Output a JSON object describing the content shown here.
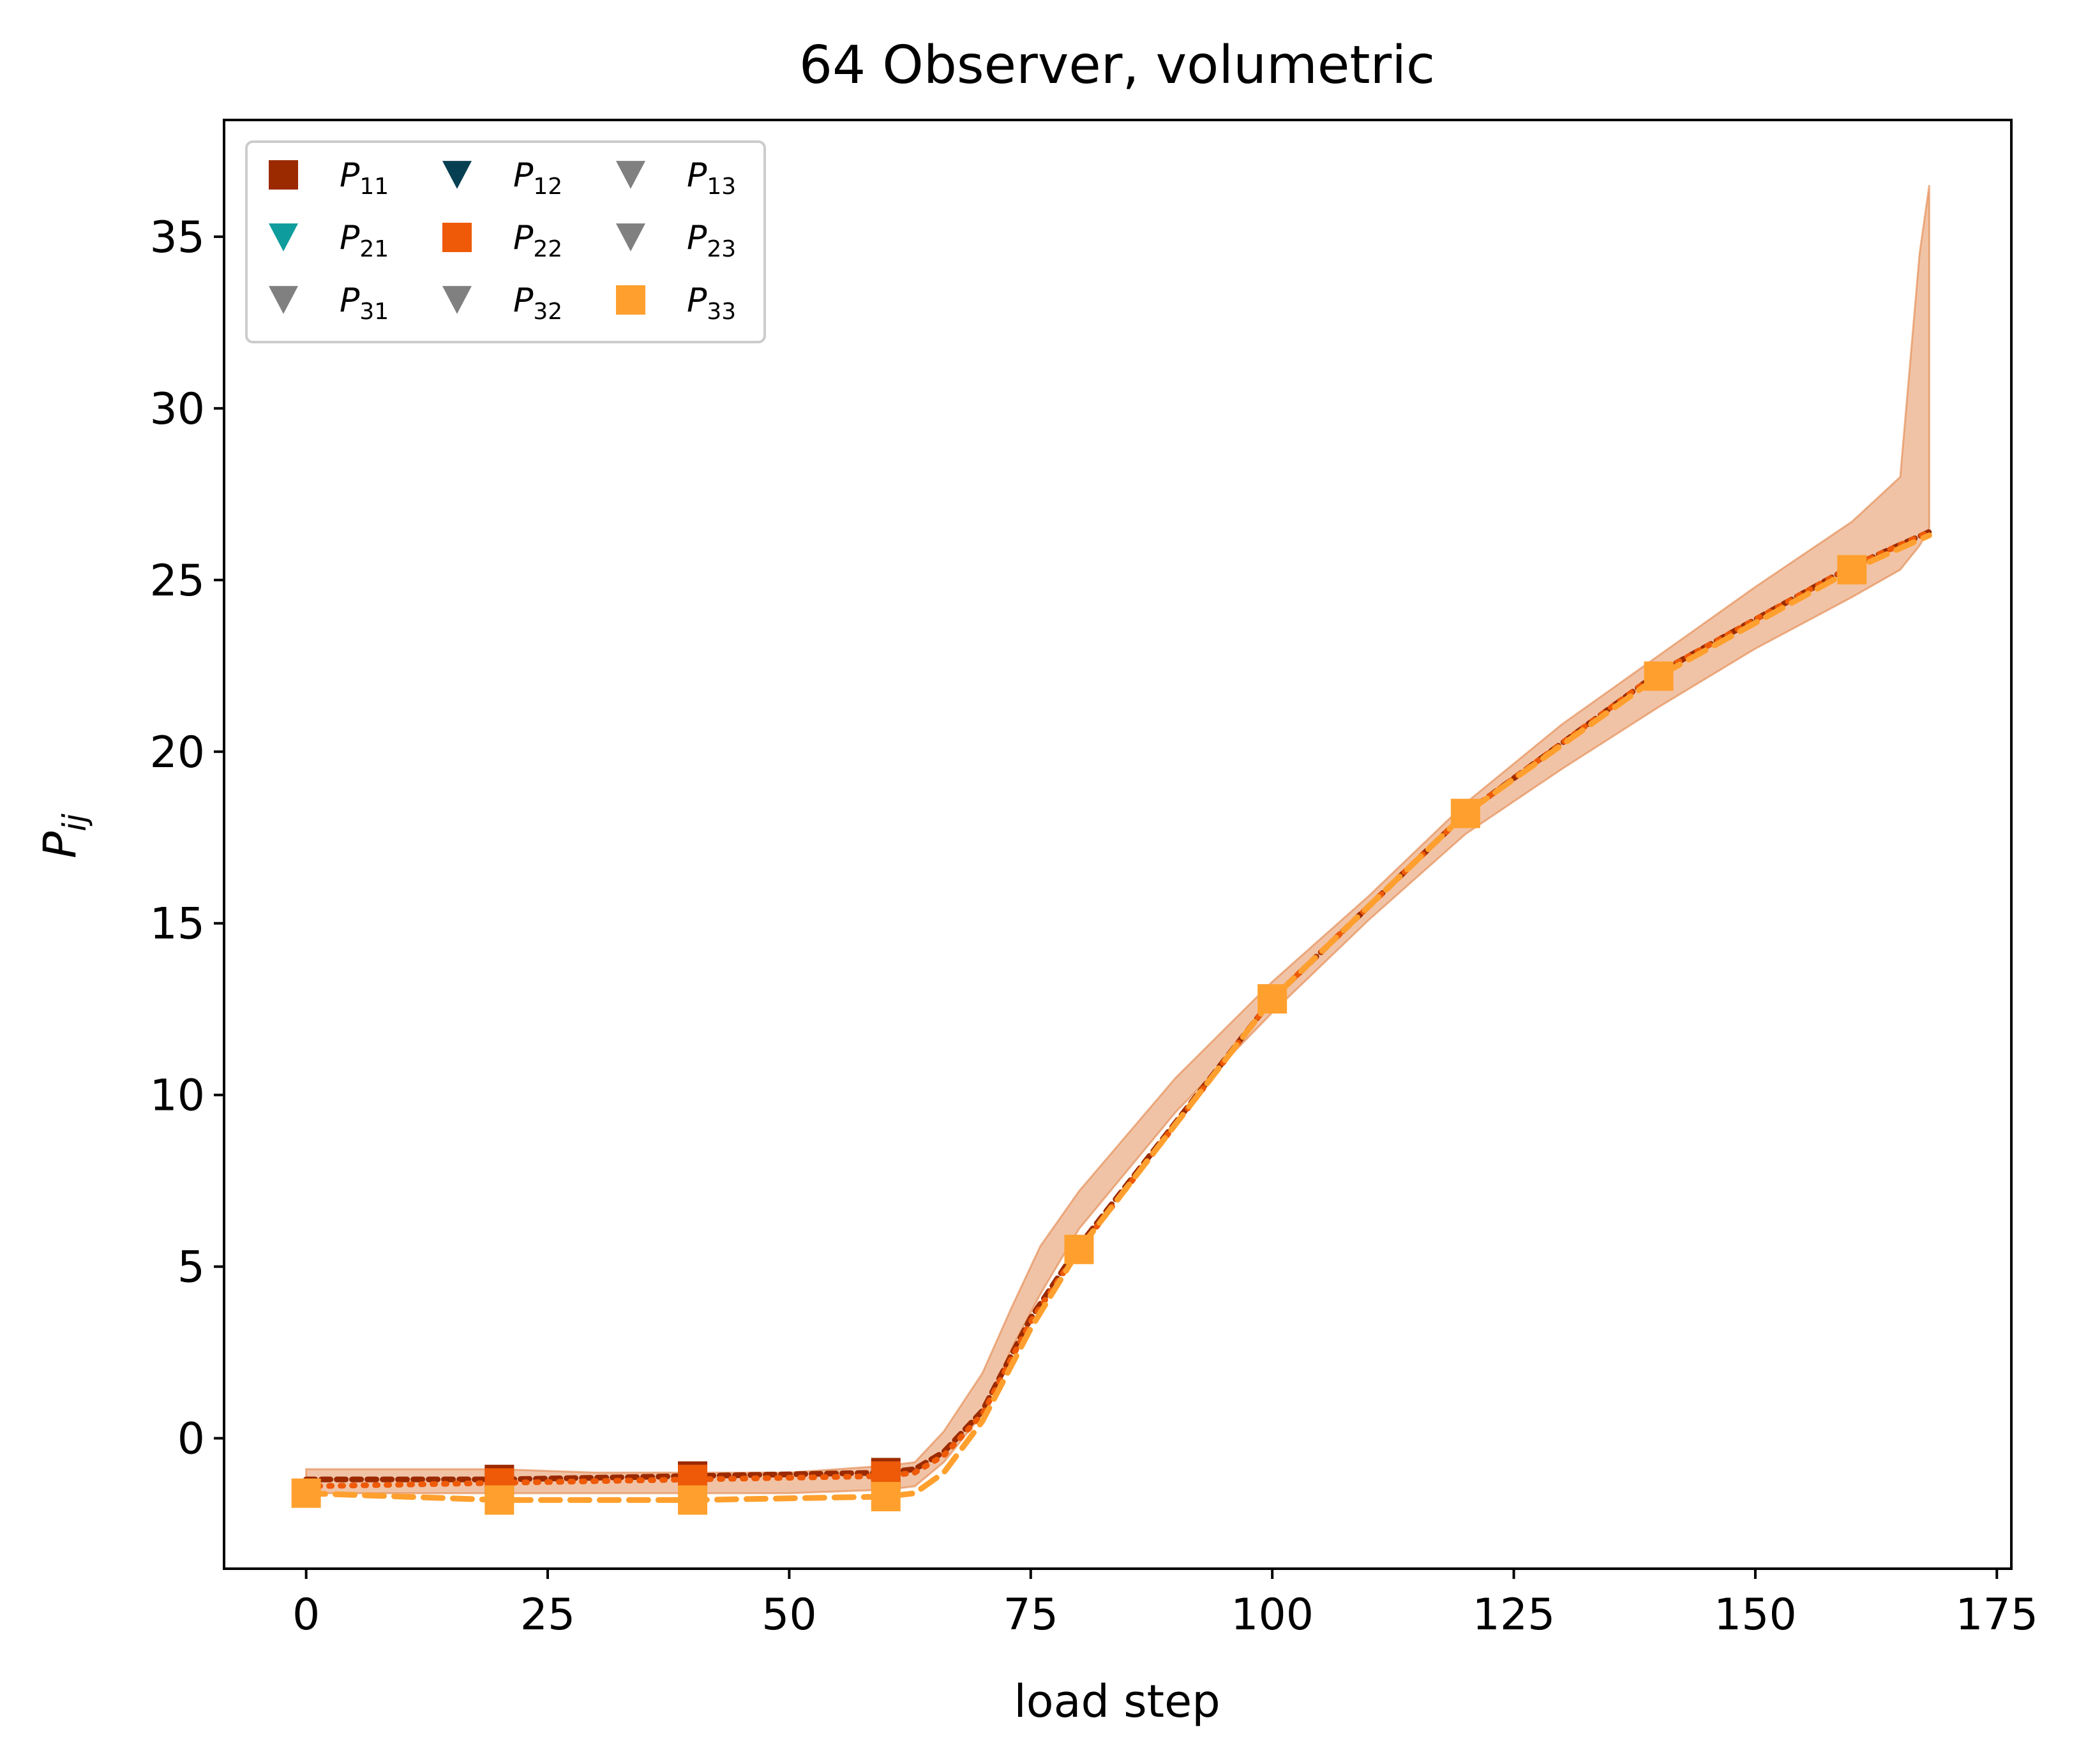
{
  "chart_data": {
    "type": "line",
    "title": "64 Observer, volumetric",
    "xlabel": "load step",
    "ylabel_main": "P",
    "ylabel_sub": "ij",
    "xlim": [
      -8.5,
      176.5
    ],
    "ylim": [
      -3.8,
      38.4
    ],
    "xticks": [
      0,
      25,
      50,
      75,
      100,
      125,
      150,
      175
    ],
    "yticks": [
      0,
      5,
      10,
      15,
      20,
      25,
      30,
      35
    ],
    "grid": false,
    "legend_position": "upper-left",
    "legend_columns": 3,
    "band": {
      "color": "#e07b3a",
      "opacity": 0.45,
      "x": [
        0,
        10,
        20,
        30,
        40,
        50,
        60,
        63,
        66,
        70,
        73,
        76,
        80,
        90,
        100,
        110,
        120,
        130,
        140,
        150,
        160,
        165,
        167,
        168
      ],
      "upper": [
        -0.9,
        -0.9,
        -0.9,
        -1.0,
        -1.0,
        -1.0,
        -0.8,
        -0.7,
        0.2,
        1.9,
        3.8,
        5.6,
        7.2,
        10.5,
        13.3,
        15.8,
        18.5,
        20.8,
        22.8,
        24.8,
        26.7,
        28.0,
        34.5,
        36.5
      ],
      "lower": [
        -1.6,
        -1.6,
        -1.6,
        -1.6,
        -1.6,
        -1.6,
        -1.5,
        -1.4,
        -0.7,
        0.7,
        2.6,
        4.2,
        6.1,
        9.5,
        12.4,
        15.1,
        17.6,
        19.5,
        21.3,
        23.0,
        24.5,
        25.3,
        26.0,
        26.5
      ]
    },
    "series": [
      {
        "name": "P_11",
        "label_main": "P",
        "label_sub": "11",
        "color": "#9b2a00",
        "marker": "square",
        "dash": "14,10",
        "x": [
          0,
          20,
          40,
          60,
          63,
          66,
          70,
          75,
          80,
          100,
          120,
          140,
          160,
          168
        ],
        "y": [
          -1.2,
          -1.2,
          -1.1,
          -1.0,
          -0.9,
          -0.4,
          0.8,
          3.5,
          5.6,
          12.8,
          18.2,
          22.3,
          25.4,
          26.4
        ],
        "marker_x": [
          20,
          40,
          60
        ],
        "marker_y": [
          -1.2,
          -1.1,
          -1.0
        ]
      },
      {
        "name": "P_21",
        "label_main": "P",
        "label_sub": "21",
        "color": "#0e9c9c",
        "marker": "triangle-down",
        "x": [],
        "y": []
      },
      {
        "name": "P_31",
        "label_main": "P",
        "label_sub": "31",
        "color": "#808080",
        "marker": "triangle-down",
        "x": [],
        "y": []
      },
      {
        "name": "P_12",
        "label_main": "P",
        "label_sub": "12",
        "color": "#073f52",
        "marker": "triangle-down",
        "x": [],
        "y": []
      },
      {
        "name": "P_22",
        "label_main": "P",
        "label_sub": "22",
        "color": "#ee5a08",
        "marker": "square",
        "dash": "4,14",
        "x": [
          0,
          20,
          40,
          60,
          63,
          66,
          70,
          75,
          80,
          100,
          120,
          140,
          160,
          168
        ],
        "y": [
          -1.4,
          -1.3,
          -1.2,
          -1.1,
          -1.0,
          -0.5,
          0.7,
          3.4,
          5.5,
          12.8,
          18.2,
          22.3,
          25.4,
          26.4
        ],
        "marker_x": [
          20,
          40,
          60
        ],
        "marker_y": [
          -1.3,
          -1.2,
          -1.1
        ]
      },
      {
        "name": "P_32",
        "label_main": "P",
        "label_sub": "32",
        "color": "#808080",
        "marker": "triangle-down",
        "x": [],
        "y": []
      },
      {
        "name": "P_13",
        "label_main": "P",
        "label_sub": "13",
        "color": "#808080",
        "marker": "triangle-down",
        "x": [],
        "y": []
      },
      {
        "name": "P_23",
        "label_main": "P",
        "label_sub": "23",
        "color": "#808080",
        "marker": "triangle-down",
        "x": [],
        "y": []
      },
      {
        "name": "P_33",
        "label_main": "P",
        "label_sub": "33",
        "color": "#ffa02e",
        "marker": "square",
        "dash": "30,16",
        "x": [
          0,
          20,
          40,
          60,
          63,
          66,
          70,
          75,
          80,
          100,
          120,
          140,
          160,
          168
        ],
        "y": [
          -1.6,
          -1.8,
          -1.8,
          -1.7,
          -1.6,
          -1.0,
          0.5,
          3.2,
          5.5,
          12.8,
          18.2,
          22.2,
          25.3,
          26.3
        ],
        "marker_x": [
          0,
          20,
          40,
          60,
          80,
          100,
          120,
          140,
          160
        ],
        "marker_y": [
          -1.6,
          -1.8,
          -1.8,
          -1.7,
          5.5,
          12.8,
          18.2,
          22.2,
          25.3
        ]
      }
    ]
  }
}
